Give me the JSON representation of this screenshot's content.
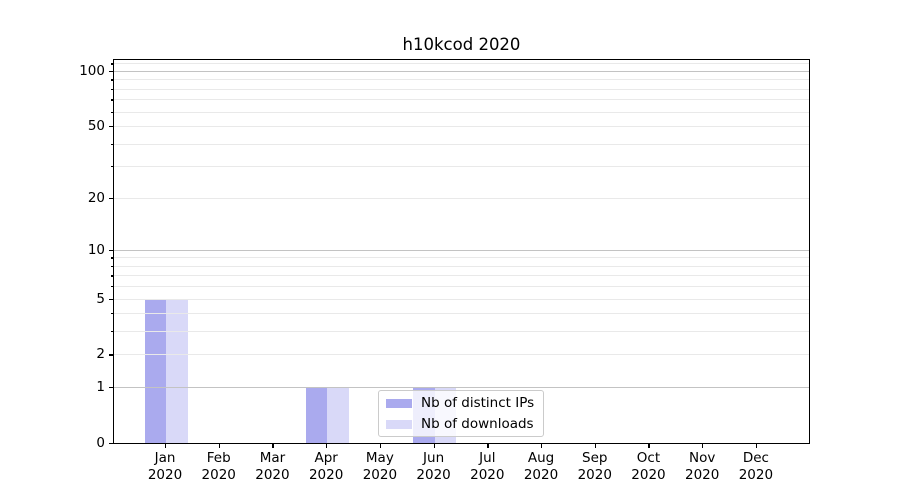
{
  "chart_data": {
    "type": "bar",
    "title": "h10kcod 2020",
    "categories": [
      "Jan",
      "Feb",
      "Mar",
      "Apr",
      "May",
      "Jun",
      "Jul",
      "Aug",
      "Sep",
      "Oct",
      "Nov",
      "Dec"
    ],
    "category_year": "2020",
    "series": [
      {
        "name": "Nb of distinct IPs",
        "color": "#aaaaee",
        "values": [
          5,
          0,
          0,
          1,
          0,
          1,
          0,
          0,
          0,
          0,
          0,
          0
        ]
      },
      {
        "name": "Nb of downloads",
        "color": "#d9d9f8",
        "values": [
          5,
          0,
          0,
          1,
          0,
          1,
          0,
          0,
          0,
          0,
          0,
          0
        ]
      }
    ],
    "y_scale": "log1p",
    "y_ticks": [
      0,
      1,
      2,
      5,
      10,
      20,
      50,
      100
    ],
    "gridlines": {
      "major": [
        1,
        10,
        100
      ],
      "minor": [
        2,
        3,
        4,
        5,
        6,
        7,
        8,
        9,
        20,
        30,
        40,
        50,
        60,
        70,
        80,
        90,
        110
      ]
    },
    "ylim": [
      0,
      114.9
    ],
    "xlabel": "",
    "ylabel": "",
    "grid": true,
    "legend_position": "lower-center"
  }
}
